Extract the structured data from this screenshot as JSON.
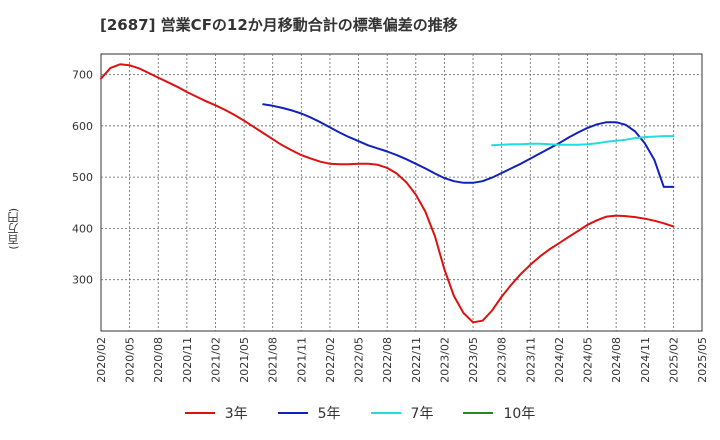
{
  "chart_data": {
    "type": "line",
    "title": "[2687]  営業CFの12か月移動合計の標準偏差の推移",
    "ylabel": "(百万円)",
    "xlabel": "",
    "ylim": [
      200,
      740
    ],
    "yticks": [
      300,
      400,
      500,
      600,
      700
    ],
    "x_ticks": [
      "2020/02",
      "2020/05",
      "2020/08",
      "2020/11",
      "2021/02",
      "2021/05",
      "2021/08",
      "2021/11",
      "2022/02",
      "2022/05",
      "2022/08",
      "2022/11",
      "2023/02",
      "2023/05",
      "2023/08",
      "2023/11",
      "2024/02",
      "2024/05",
      "2024/08",
      "2024/11",
      "2025/02",
      "2025/05"
    ],
    "grid": true,
    "legend_position": "bottom",
    "series": [
      {
        "name": "3年",
        "color": "#dd1111",
        "x": [
          "2020/02",
          "2020/03",
          "2020/04",
          "2020/05",
          "2020/06",
          "2020/07",
          "2020/08",
          "2020/09",
          "2020/10",
          "2020/11",
          "2020/12",
          "2021/01",
          "2021/02",
          "2021/03",
          "2021/04",
          "2021/05",
          "2021/06",
          "2021/07",
          "2021/08",
          "2021/09",
          "2021/10",
          "2021/11",
          "2021/12",
          "2022/01",
          "2022/02",
          "2022/03",
          "2022/04",
          "2022/05",
          "2022/06",
          "2022/07",
          "2022/08",
          "2022/09",
          "2022/10",
          "2022/11",
          "2022/12",
          "2023/01",
          "2023/02",
          "2023/03",
          "2023/04",
          "2023/05",
          "2023/06",
          "2023/07",
          "2023/08",
          "2023/09",
          "2023/10",
          "2023/11",
          "2023/12",
          "2024/01",
          "2024/02",
          "2024/03",
          "2024/04",
          "2024/05",
          "2024/06",
          "2024/07",
          "2024/08",
          "2024/09",
          "2024/10",
          "2024/11",
          "2024/12",
          "2025/01",
          "2025/02"
        ],
        "values": [
          692,
          713,
          720,
          718,
          712,
          703,
          694,
          685,
          676,
          666,
          657,
          648,
          640,
          631,
          621,
          610,
          598,
          586,
          574,
          562,
          552,
          543,
          536,
          530,
          526,
          525,
          525,
          526,
          526,
          524,
          518,
          507,
          490,
          466,
          433,
          385,
          320,
          268,
          235,
          217,
          220,
          240,
          267,
          290,
          311,
          329,
          345,
          359,
          371,
          383,
          395,
          407,
          416,
          423,
          425,
          424,
          422,
          419,
          415,
          410,
          404
        ]
      },
      {
        "name": "5年",
        "color": "#1122bb",
        "x": [
          "2021/07",
          "2021/08",
          "2021/09",
          "2021/10",
          "2021/11",
          "2021/12",
          "2022/01",
          "2022/02",
          "2022/03",
          "2022/04",
          "2022/05",
          "2022/06",
          "2022/07",
          "2022/08",
          "2022/09",
          "2022/10",
          "2022/11",
          "2022/12",
          "2023/01",
          "2023/02",
          "2023/03",
          "2023/04",
          "2023/05",
          "2023/06",
          "2023/07",
          "2023/08",
          "2023/09",
          "2023/10",
          "2023/11",
          "2023/12",
          "2024/01",
          "2024/02",
          "2024/03",
          "2024/04",
          "2024/05",
          "2024/06",
          "2024/07",
          "2024/08",
          "2024/09",
          "2024/10",
          "2024/11",
          "2024/12",
          "2025/01",
          "2025/02"
        ],
        "values": [
          642,
          639,
          635,
          630,
          624,
          616,
          607,
          597,
          587,
          578,
          570,
          562,
          556,
          550,
          543,
          535,
          526,
          517,
          507,
          498,
          492,
          489,
          489,
          492,
          499,
          508,
          517,
          526,
          536,
          546,
          556,
          566,
          577,
          587,
          596,
          603,
          607,
          607,
          602,
          589,
          566,
          534,
          481,
          481
        ]
      },
      {
        "name": "7年",
        "color": "#22dddd",
        "x": [
          "2023/07",
          "2023/08",
          "2023/09",
          "2023/10",
          "2023/11",
          "2023/12",
          "2024/01",
          "2024/02",
          "2024/03",
          "2024/04",
          "2024/05",
          "2024/06",
          "2024/07",
          "2024/08",
          "2024/09",
          "2024/10",
          "2024/11",
          "2024/12",
          "2025/01",
          "2025/02"
        ],
        "values": [
          562,
          563,
          564,
          564,
          565,
          565,
          564,
          563,
          563,
          563,
          564,
          566,
          569,
          571,
          573,
          576,
          578,
          579,
          580,
          580
        ]
      },
      {
        "name": "10年",
        "color": "#228822",
        "x": [],
        "values": []
      }
    ]
  }
}
